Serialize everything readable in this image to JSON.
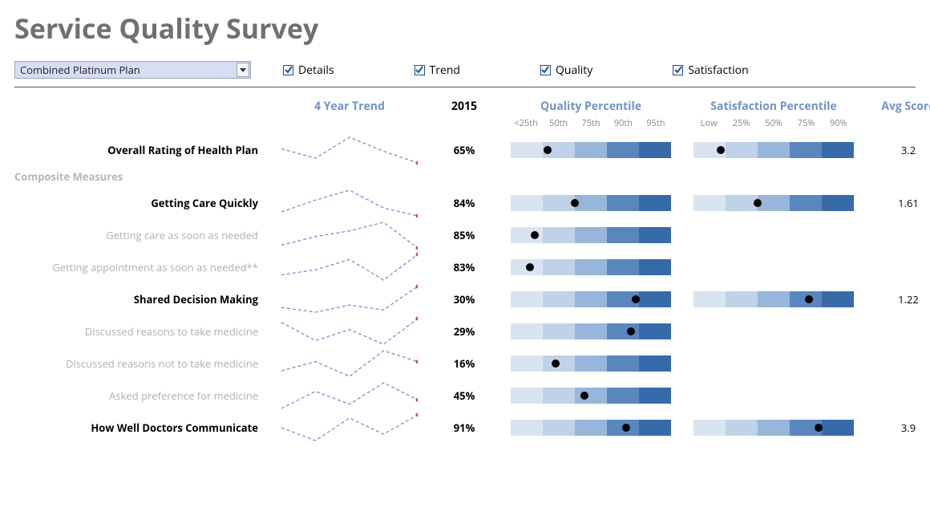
{
  "title": "Service Quality Survey",
  "dropdown": {
    "selected": "Combined Platinum Plan"
  },
  "checkboxes": [
    {
      "label": "Details",
      "checked": true
    },
    {
      "label": "Trend",
      "checked": true
    },
    {
      "label": "Quality",
      "checked": true
    },
    {
      "label": "Satisfaction",
      "checked": true
    }
  ],
  "columns": {
    "trend": "4 Year Trend",
    "year": "2015",
    "quality": "Quality Percentile",
    "satisfaction": "Satisfaction Percentile",
    "avg": "Avg Score"
  },
  "quality_ticks": [
    "<25th",
    "50th",
    "75th",
    "90th",
    "95th"
  ],
  "satisfaction_ticks": [
    "Low",
    "25%",
    "50%",
    "75%",
    "90%"
  ],
  "bullet_colors": [
    "#d9e4f1",
    "#c0d2e8",
    "#96b6da",
    "#5a86c0",
    "#376aa8"
  ],
  "spark_style": {
    "stroke": "#6f94cc",
    "dash": "4 3",
    "end_dot_color": "#c1504f"
  },
  "section_label": "Composite Measures",
  "rows": [
    {
      "label": "Overall Rating of Health Plan",
      "style": "bold",
      "spark": [
        20,
        12,
        30,
        18,
        8
      ],
      "pct2015": "65%",
      "quality_dot": 0.23,
      "satisfaction_dot": 0.17,
      "avg": "3.2"
    },
    {
      "section": true
    },
    {
      "label": "Getting Care Quickly",
      "style": "bold",
      "spark": [
        10,
        22,
        32,
        14,
        6
      ],
      "pct2015": "84%",
      "quality_dot": 0.4,
      "satisfaction_dot": 0.4,
      "avg": "1.61"
    },
    {
      "label": "Getting care as soon as needed",
      "style": "faded",
      "spark": [
        12,
        18,
        22,
        28,
        10
      ],
      "pct2015": "85%",
      "quality_dot": 0.15,
      "satisfaction_dot": null,
      "avg": ""
    },
    {
      "label": "Getting appointment as soon as needed**",
      "style": "faded",
      "spark": [
        10,
        14,
        22,
        6,
        26
      ],
      "pct2015": "83%",
      "quality_dot": 0.12,
      "satisfaction_dot": null,
      "avg": ""
    },
    {
      "label": "Shared Decision Making",
      "style": "bold",
      "spark": [
        12,
        8,
        14,
        10,
        30
      ],
      "pct2015": "30%",
      "quality_dot": 0.78,
      "satisfaction_dot": 0.72,
      "avg": "1.22"
    },
    {
      "label": "Discussed reasons to take medicine",
      "style": "faded",
      "spark": [
        20,
        10,
        16,
        8,
        22
      ],
      "pct2015": "29%",
      "quality_dot": 0.75,
      "satisfaction_dot": null,
      "avg": ""
    },
    {
      "label": "Discussed reasons not to take medicine",
      "style": "faded",
      "spark": [
        15,
        20,
        12,
        26,
        20
      ],
      "pct2015": "16%",
      "quality_dot": 0.28,
      "satisfaction_dot": null,
      "avg": ""
    },
    {
      "label": "Asked preference for medicine",
      "style": "faded",
      "spark": [
        10,
        18,
        12,
        22,
        14
      ],
      "pct2015": "45%",
      "quality_dot": 0.46,
      "satisfaction_dot": null,
      "avg": ""
    },
    {
      "label": "How Well Doctors Communicate",
      "style": "bold",
      "spark": [
        18,
        10,
        24,
        14,
        26
      ],
      "pct2015": "91%",
      "quality_dot": 0.72,
      "satisfaction_dot": 0.78,
      "avg": "3.9"
    }
  ]
}
